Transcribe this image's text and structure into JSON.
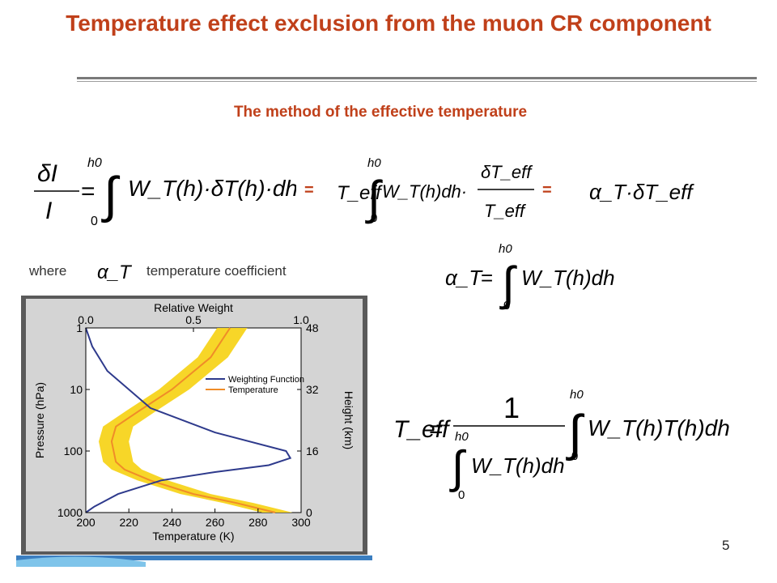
{
  "slide": {
    "title": "Temperature effect exclusion from the muon CR component",
    "subtitle": "The method of the effective temperature",
    "equals_1": "=",
    "equals_2": "=",
    "where_label": "where",
    "coefficient_label": "temperature coefficient",
    "page_number": "5"
  },
  "formulas": {
    "intensity_variation": {
      "lhs_num": "δI",
      "lhs_den": "I",
      "upper_limit": "h0",
      "lower_limit": "0",
      "integrand": "W_T(h)·δT(h)·dh"
    },
    "effective_form": {
      "prefix": "T_eff",
      "upper_limit": "h0",
      "lower_limit": "0",
      "integrand": "W_T(h)dh·",
      "frac_num": "δT_eff",
      "frac_den": "T_eff"
    },
    "alpha_form": "α_T·δT_eff",
    "alpha_symbol": "α_T",
    "alpha_definition": {
      "lhs": "α_T",
      "upper_limit": "h0",
      "lower_limit": "0",
      "integrand": "W_T(h)dh"
    },
    "teff_definition": {
      "lhs": "T_eff",
      "num": "1",
      "den_upper": "h0",
      "den_lower": "0",
      "den_integrand": "W_T(h)dh",
      "upper_limit": "h0",
      "lower_limit": "0",
      "integrand": "W_T(h)T(h)dh"
    }
  },
  "chart_data": {
    "type": "line",
    "title": "",
    "top_axis_label": "Relative Weight",
    "top_ticks": [
      "0.0",
      "0.5",
      "1.0"
    ],
    "xlabel": "Temperature (K)",
    "x_ticks": [
      "200",
      "220",
      "240",
      "260",
      "280",
      "300"
    ],
    "xlim": [
      200,
      300
    ],
    "ylabel": "Pressure (hPa)",
    "y_ticks": [
      "1",
      "10",
      "100",
      "1000"
    ],
    "y_scale": "log",
    "ylim": [
      1,
      1000
    ],
    "right_axis_label": "Height (km)",
    "right_ticks": [
      "48",
      "32",
      "16",
      "0"
    ],
    "legend": [
      "Weighting Function",
      "Temperature"
    ],
    "legend_placement": "center-right",
    "colors": {
      "weighting": "#2e3a8c",
      "temperature": "#f08c28",
      "band": "#f7d41c"
    },
    "series": [
      {
        "name": "Weighting Function",
        "axis": "relative_weight",
        "points": [
          [
            0.0,
            1
          ],
          [
            0.03,
            2
          ],
          [
            0.1,
            5
          ],
          [
            0.3,
            20
          ],
          [
            0.6,
            50
          ],
          [
            0.93,
            100
          ],
          [
            0.95,
            130
          ],
          [
            0.85,
            170
          ],
          [
            0.6,
            220
          ],
          [
            0.35,
            300
          ],
          [
            0.15,
            500
          ],
          [
            0.04,
            800
          ],
          [
            0.0,
            1000
          ]
        ]
      },
      {
        "name": "Temperature",
        "axis": "temperature_K",
        "points": [
          [
            267,
            1
          ],
          [
            258,
            3
          ],
          [
            240,
            10
          ],
          [
            225,
            22
          ],
          [
            214,
            40
          ],
          [
            212,
            70
          ],
          [
            214,
            150
          ],
          [
            218,
            200
          ],
          [
            230,
            300
          ],
          [
            250,
            500
          ],
          [
            270,
            700
          ],
          [
            288,
            1000
          ]
        ]
      }
    ]
  }
}
